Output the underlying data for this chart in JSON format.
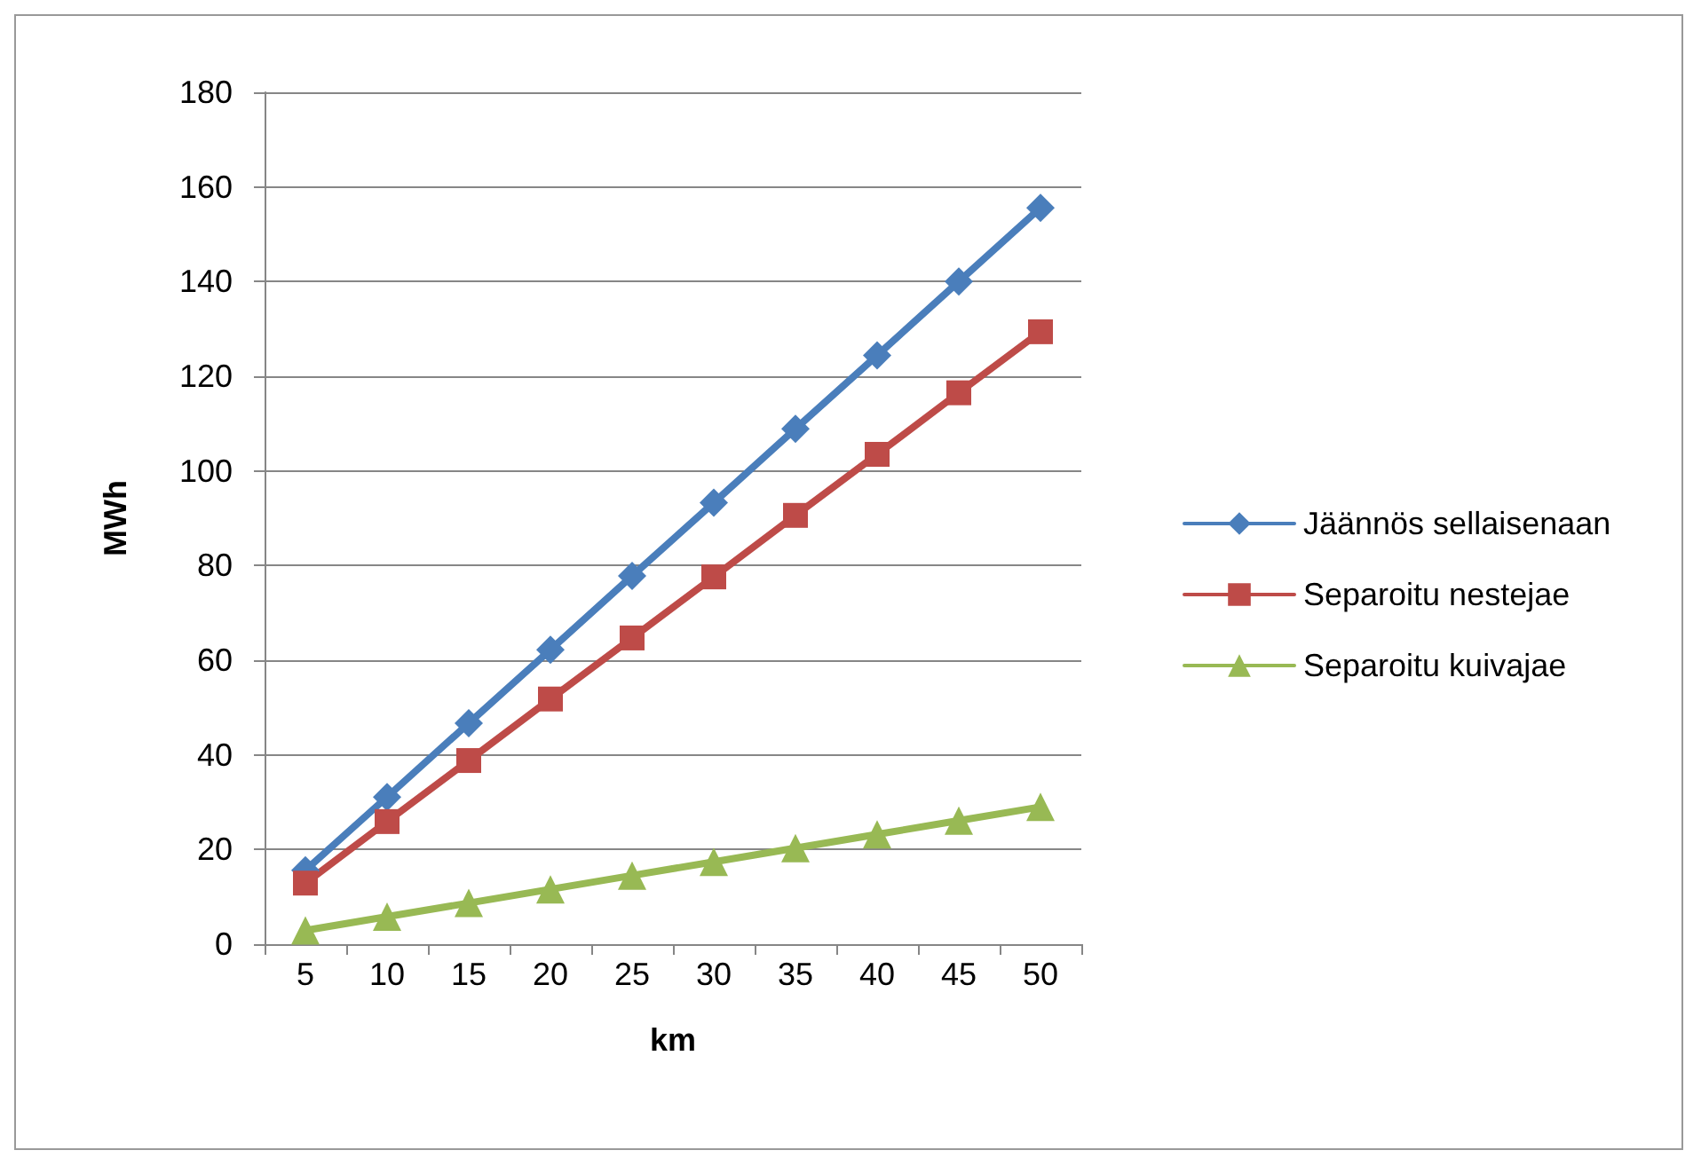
{
  "chart_data": {
    "type": "line",
    "xlabel": "km",
    "ylabel": "MWh",
    "categories": [
      "5",
      "10",
      "15",
      "20",
      "25",
      "30",
      "35",
      "40",
      "45",
      "50"
    ],
    "series": [
      {
        "name": "Jäännös sellaisenaan",
        "color": "#4a7ebb",
        "marker": "diamond",
        "values": [
          15.6,
          31.1,
          46.7,
          62.2,
          77.8,
          93.3,
          108.9,
          124.4,
          140,
          155.6
        ]
      },
      {
        "name": "Separoitu nestejae",
        "color": "#be4b48",
        "marker": "square",
        "values": [
          12.9,
          25.9,
          38.8,
          51.8,
          64.7,
          77.6,
          90.6,
          103.5,
          116.5,
          129.4
        ]
      },
      {
        "name": "Separoitu kuivajae",
        "color": "#98b954",
        "marker": "triangle",
        "values": [
          2.9,
          5.8,
          8.7,
          11.6,
          14.5,
          17.4,
          20.3,
          23.2,
          26.1,
          29.0
        ]
      }
    ],
    "ylim": [
      0,
      180
    ],
    "yticks": [
      0,
      20,
      40,
      60,
      80,
      100,
      120,
      140,
      160,
      180
    ],
    "grid": "y",
    "legend": "right",
    "line_style": "solid"
  }
}
